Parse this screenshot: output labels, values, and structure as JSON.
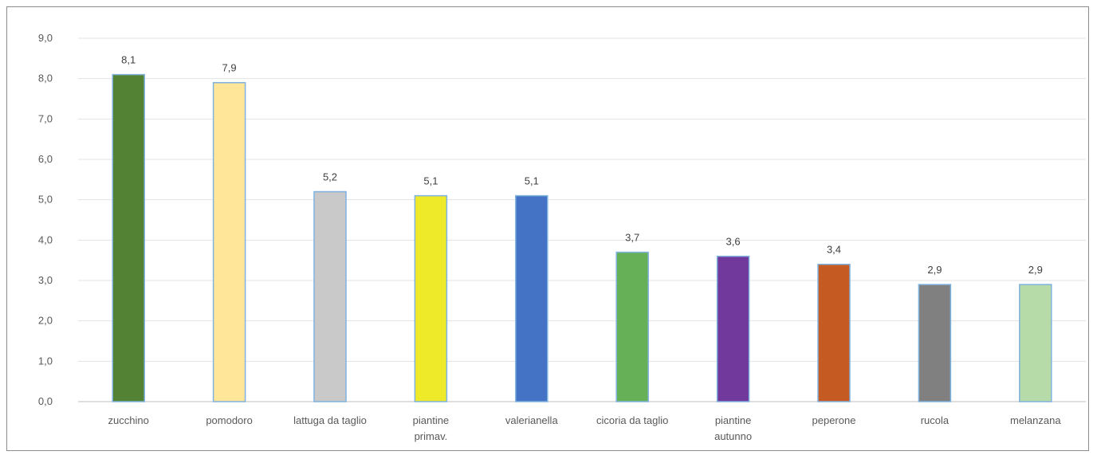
{
  "chart_data": {
    "type": "bar",
    "title": "",
    "xlabel": "",
    "ylabel": "",
    "ylim": [
      0,
      9
    ],
    "y_ticks": [
      "0,0",
      "1,0",
      "2,0",
      "3,0",
      "4,0",
      "5,0",
      "6,0",
      "7,0",
      "8,0",
      "9,0"
    ],
    "grid": true,
    "categories": [
      [
        "zucchino"
      ],
      [
        "pomodoro"
      ],
      [
        "lattuga da taglio"
      ],
      [
        "piantine",
        "primav."
      ],
      [
        "valerianella"
      ],
      [
        "cicoria da taglio"
      ],
      [
        "piantine",
        "autunno"
      ],
      [
        "peperone"
      ],
      [
        "rucola"
      ],
      [
        "melanzana"
      ]
    ],
    "values": [
      8.1,
      7.9,
      5.2,
      5.1,
      5.1,
      3.7,
      3.6,
      3.4,
      2.9,
      2.9
    ],
    "value_labels": [
      "8,1",
      "7,9",
      "5,2",
      "5,1",
      "5,1",
      "3,7",
      "3,6",
      "3,4",
      "2,9",
      "2,9"
    ],
    "colors": [
      "#548235",
      "#ffe699",
      "#c9c9c9",
      "#eeea2a",
      "#4472c4",
      "#66b157",
      "#70399b",
      "#c55a22",
      "#808080",
      "#b7dba8"
    ],
    "bar_border_color": "#7fb2df",
    "grid_color": "#e3e3e3",
    "axis_color": "#bfbfbf"
  }
}
